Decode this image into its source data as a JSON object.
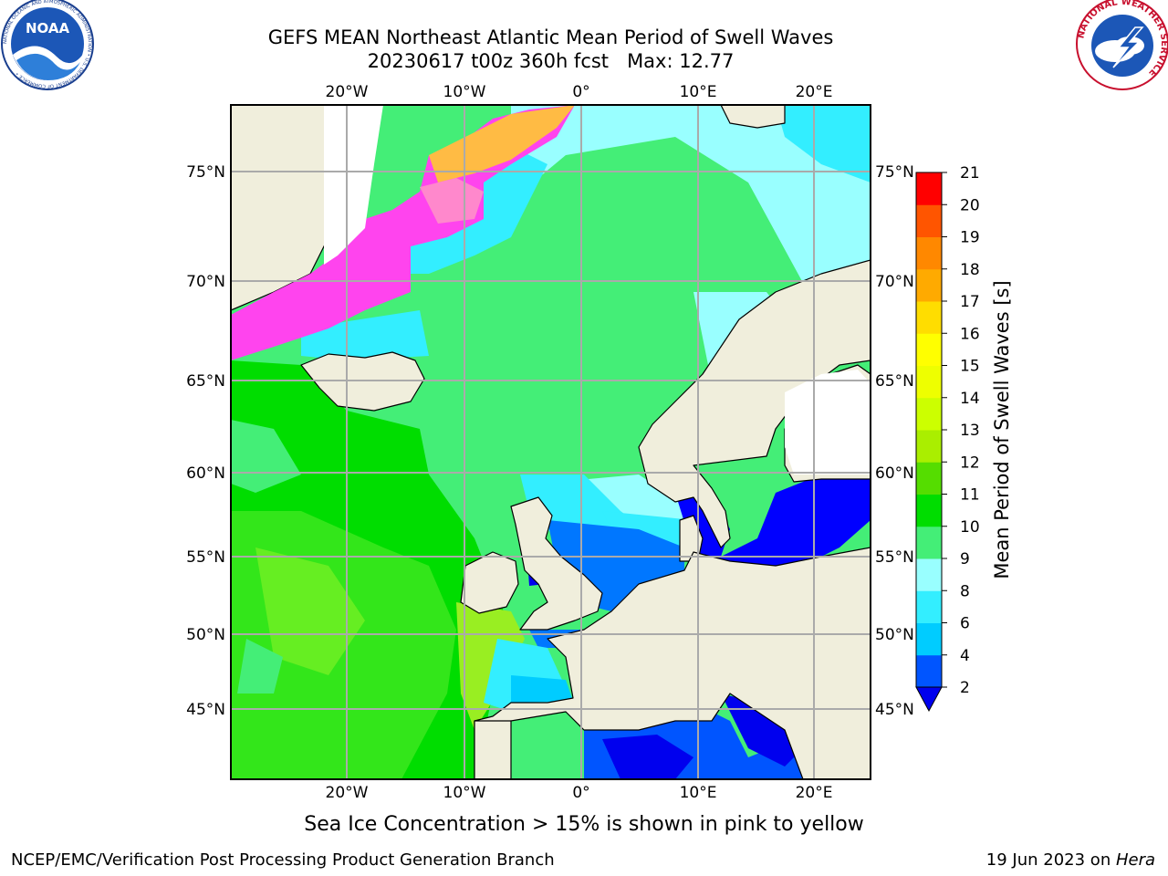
{
  "title": {
    "line1": "GEFS MEAN Northeast Atlantic Mean Period of Swell Waves",
    "line2": "20230617 t00z 360h fcst   Max: 12.77"
  },
  "logos": {
    "noaa": "NOAA",
    "noaa_ring": "NATIONAL OCEANIC AND ATMOSPHERIC ADMINISTRATION • U.S. DEPARTMENT OF COMMERCE •",
    "nws_ring": "NATIONAL WEATHER SERVICE"
  },
  "axes": {
    "lon_labels": [
      "20°W",
      "10°W",
      "0°",
      "10°E",
      "20°E"
    ],
    "lat_labels": [
      "75°N",
      "70°N",
      "65°N",
      "60°N",
      "55°N",
      "50°N",
      "45°N"
    ]
  },
  "colorbar": {
    "label": "Mean Period of Swell Waves [s]",
    "ticks": [
      "2",
      "4",
      "6",
      "8",
      "9",
      "10",
      "11",
      "12",
      "13",
      "14",
      "15",
      "16",
      "17",
      "18",
      "19",
      "20",
      "21"
    ],
    "colors": [
      "#0055ff",
      "#00ccff",
      "#33eeff",
      "#99ffff",
      "#44ee77",
      "#00dd00",
      "#55dd00",
      "#aaee00",
      "#ccff00",
      "#eeff00",
      "#ffff00",
      "#ffdd00",
      "#ffaa00",
      "#ff8800",
      "#ff5500",
      "#ff0000"
    ],
    "under_color": "#0000ee"
  },
  "colors": {
    "land": "#f0eedc",
    "sea_ice_pink": "#ff44ee",
    "sea_ice_orange": "#ffbb44",
    "gridline": "#aaaaaa"
  },
  "subtitle": "Sea Ice Concentration > 15% is shown in pink to yellow",
  "footer": {
    "left": "NCEP/EMC/Verification Post Processing Product Generation Branch",
    "date": "19 Jun 2023 on ",
    "machine": "Hera"
  }
}
